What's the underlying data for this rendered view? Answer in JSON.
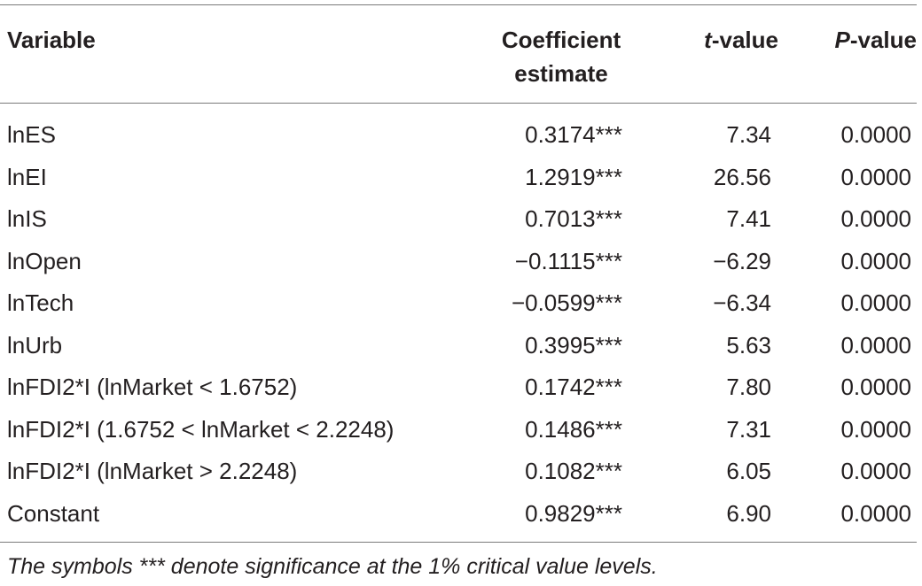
{
  "table": {
    "headers": {
      "variable": "Variable",
      "coef_line1": "Coefficient",
      "coef_line2": "estimate",
      "t_italic": "t",
      "t_rest": "-value",
      "p_italic": "P",
      "p_rest": "-value"
    },
    "rows": [
      {
        "variable": "lnES",
        "coef": "0.3174***",
        "t": "7.34",
        "p": "0.0000"
      },
      {
        "variable": "lnEI",
        "coef": "1.2919***",
        "t": "26.56",
        "p": "0.0000"
      },
      {
        "variable": "lnIS",
        "coef": "0.7013***",
        "t": "7.41",
        "p": "0.0000"
      },
      {
        "variable": "lnOpen",
        "coef": "−0.1115***",
        "t": "−6.29",
        "p": "0.0000"
      },
      {
        "variable": "lnTech",
        "coef": "−0.0599***",
        "t": "−6.34",
        "p": "0.0000"
      },
      {
        "variable": "lnUrb",
        "coef": "0.3995***",
        "t": "5.63",
        "p": "0.0000"
      },
      {
        "variable": "lnFDI2*I (lnMarket < 1.6752)",
        "coef": "0.1742***",
        "t": "7.80",
        "p": "0.0000"
      },
      {
        "variable": "lnFDI2*I (1.6752 < lnMarket < 2.2248)",
        "coef": "0.1486***",
        "t": "7.31",
        "p": "0.0000"
      },
      {
        "variable": "lnFDI2*I (lnMarket > 2.2248)",
        "coef": "0.1082***",
        "t": "6.05",
        "p": "0.0000"
      },
      {
        "variable": "Constant",
        "coef": "0.9829***",
        "t": "6.90",
        "p": "0.0000"
      }
    ],
    "footnote": "The symbols *** denote significance at the 1% critical value levels."
  }
}
